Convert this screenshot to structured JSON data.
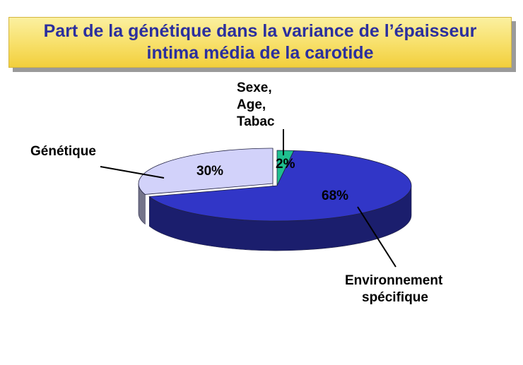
{
  "title": {
    "line1": "Part de la génétique dans la variance de l’épaisseur",
    "line2": "intima média de la carotide"
  },
  "chart_data": {
    "type": "pie",
    "style": "3d-exploded-single-slice",
    "title": "Part de la génétique dans la variance de l’épaisseur intima média de la carotide",
    "slices": [
      {
        "label": [
          "Sexe,",
          "Age,",
          "Tabac"
        ],
        "value": 2,
        "value_label": "2%",
        "color": "#1fbf8f"
      },
      {
        "label": [
          "Environnement",
          "spécifique"
        ],
        "value": 68,
        "value_label": "68%",
        "color": "#3136c7"
      },
      {
        "label": [
          "Génétique"
        ],
        "value": 30,
        "value_label": "30%",
        "color": "#d2d2fa"
      }
    ],
    "colors": {
      "title_text": "#2b2f9e",
      "title_bg": "#f7df68"
    }
  }
}
